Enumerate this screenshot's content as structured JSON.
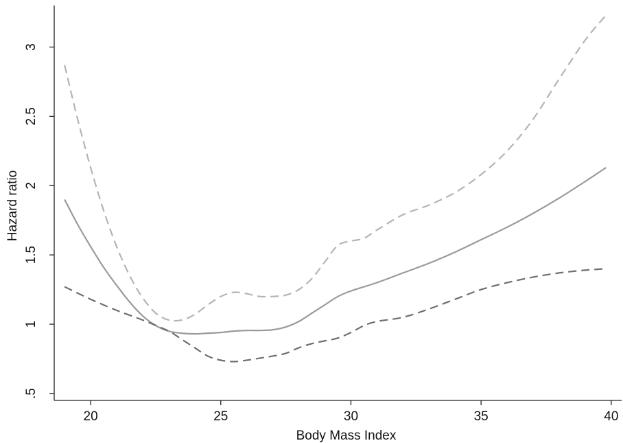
{
  "chart_data": {
    "type": "line",
    "xlabel": "Body Mass Index",
    "ylabel": "Hazard ratio",
    "xlim": [
      18.6,
      40.4
    ],
    "ylim": [
      0.45,
      3.3
    ],
    "xticks": [
      20,
      25,
      30,
      35,
      40
    ],
    "xtick_labels": [
      "20",
      "25",
      "30",
      "35",
      "40"
    ],
    "yticks": [
      0.5,
      1,
      1.5,
      2,
      2.5,
      3
    ],
    "ytick_labels": [
      ".5",
      "1",
      "1.5",
      "2",
      "2.5",
      "3"
    ],
    "grid": false,
    "legend": "none",
    "series": [
      {
        "style": "solid",
        "color": "#9a9a9a",
        "x": [
          19,
          19.5,
          20,
          20.5,
          21,
          21.5,
          22,
          22.5,
          23,
          23.5,
          24,
          24.5,
          25,
          25.5,
          26,
          26.5,
          27,
          27.5,
          28,
          28.5,
          29,
          29.5,
          30,
          31,
          32,
          33,
          34,
          35,
          36,
          37,
          38,
          39,
          39.8
        ],
        "y": [
          1.9,
          1.72,
          1.56,
          1.41,
          1.28,
          1.16,
          1.06,
          0.99,
          0.95,
          0.935,
          0.93,
          0.935,
          0.94,
          0.95,
          0.955,
          0.955,
          0.96,
          0.98,
          1.02,
          1.08,
          1.14,
          1.2,
          1.24,
          1.3,
          1.37,
          1.44,
          1.52,
          1.61,
          1.7,
          1.8,
          1.91,
          2.03,
          2.13
        ]
      },
      {
        "style": "dashed",
        "color": "#b4b4b4",
        "x": [
          19,
          19.5,
          20,
          20.5,
          21,
          21.5,
          22,
          22.5,
          23,
          23.5,
          24,
          24.5,
          25,
          25.5,
          26,
          26.5,
          27,
          27.5,
          28,
          28.5,
          29,
          29.5,
          30,
          30.5,
          31,
          32,
          33,
          34,
          35,
          36,
          37,
          38,
          39,
          39.8
        ],
        "y": [
          2.87,
          2.48,
          2.13,
          1.82,
          1.56,
          1.35,
          1.19,
          1.08,
          1.03,
          1.03,
          1.07,
          1.14,
          1.2,
          1.23,
          1.22,
          1.2,
          1.2,
          1.21,
          1.25,
          1.33,
          1.45,
          1.57,
          1.6,
          1.62,
          1.68,
          1.79,
          1.86,
          1.95,
          2.08,
          2.25,
          2.48,
          2.77,
          3.05,
          3.23
        ]
      },
      {
        "style": "dashed",
        "color": "#6e6e6e",
        "x": [
          19,
          20,
          21,
          22,
          23,
          23.5,
          24,
          24.5,
          25,
          25.5,
          26,
          26.5,
          27,
          27.5,
          28,
          28.5,
          29,
          29.5,
          30,
          30.5,
          31,
          32,
          33,
          34,
          35,
          36,
          37,
          38,
          39,
          39.8
        ],
        "y": [
          1.27,
          1.18,
          1.1,
          1.03,
          0.95,
          0.89,
          0.83,
          0.77,
          0.74,
          0.73,
          0.74,
          0.755,
          0.77,
          0.79,
          0.83,
          0.86,
          0.88,
          0.9,
          0.94,
          0.99,
          1.02,
          1.05,
          1.11,
          1.18,
          1.25,
          1.3,
          1.34,
          1.37,
          1.39,
          1.4
        ]
      }
    ]
  }
}
